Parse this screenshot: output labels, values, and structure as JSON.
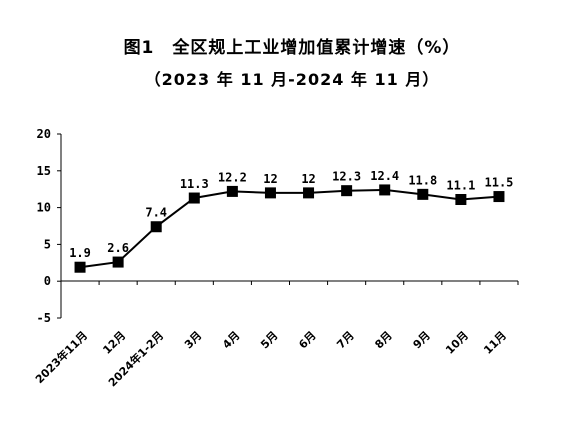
{
  "chart_data": {
    "type": "line",
    "title": "图1　全区规上工业增加值累计增速（%）",
    "subtitle": "（2023 年 11 月-2024 年 11 月）",
    "categories": [
      "2023年11月",
      "12月",
      "2024年1-2月",
      "3月",
      "4月",
      "5月",
      "6月",
      "7月",
      "8月",
      "9月",
      "10月",
      "11月"
    ],
    "series": [
      {
        "values": [
          1.9,
          2.6,
          7.4,
          11.3,
          12.2,
          12,
          12,
          12.3,
          12.4,
          11.8,
          11.1,
          11.5
        ]
      }
    ],
    "data_labels": [
      "1.9",
      "2.6",
      "7.4",
      "11.3",
      "12.2",
      "12",
      "12",
      "12.3",
      "12.4",
      "11.8",
      "11.1",
      "11.5"
    ],
    "yticks": [
      "20",
      "15",
      "10",
      "5",
      "0",
      "-5"
    ],
    "ylim": [
      -5,
      20
    ],
    "grid": false,
    "legend": "none",
    "line_color": "#000000",
    "marker": "square"
  }
}
